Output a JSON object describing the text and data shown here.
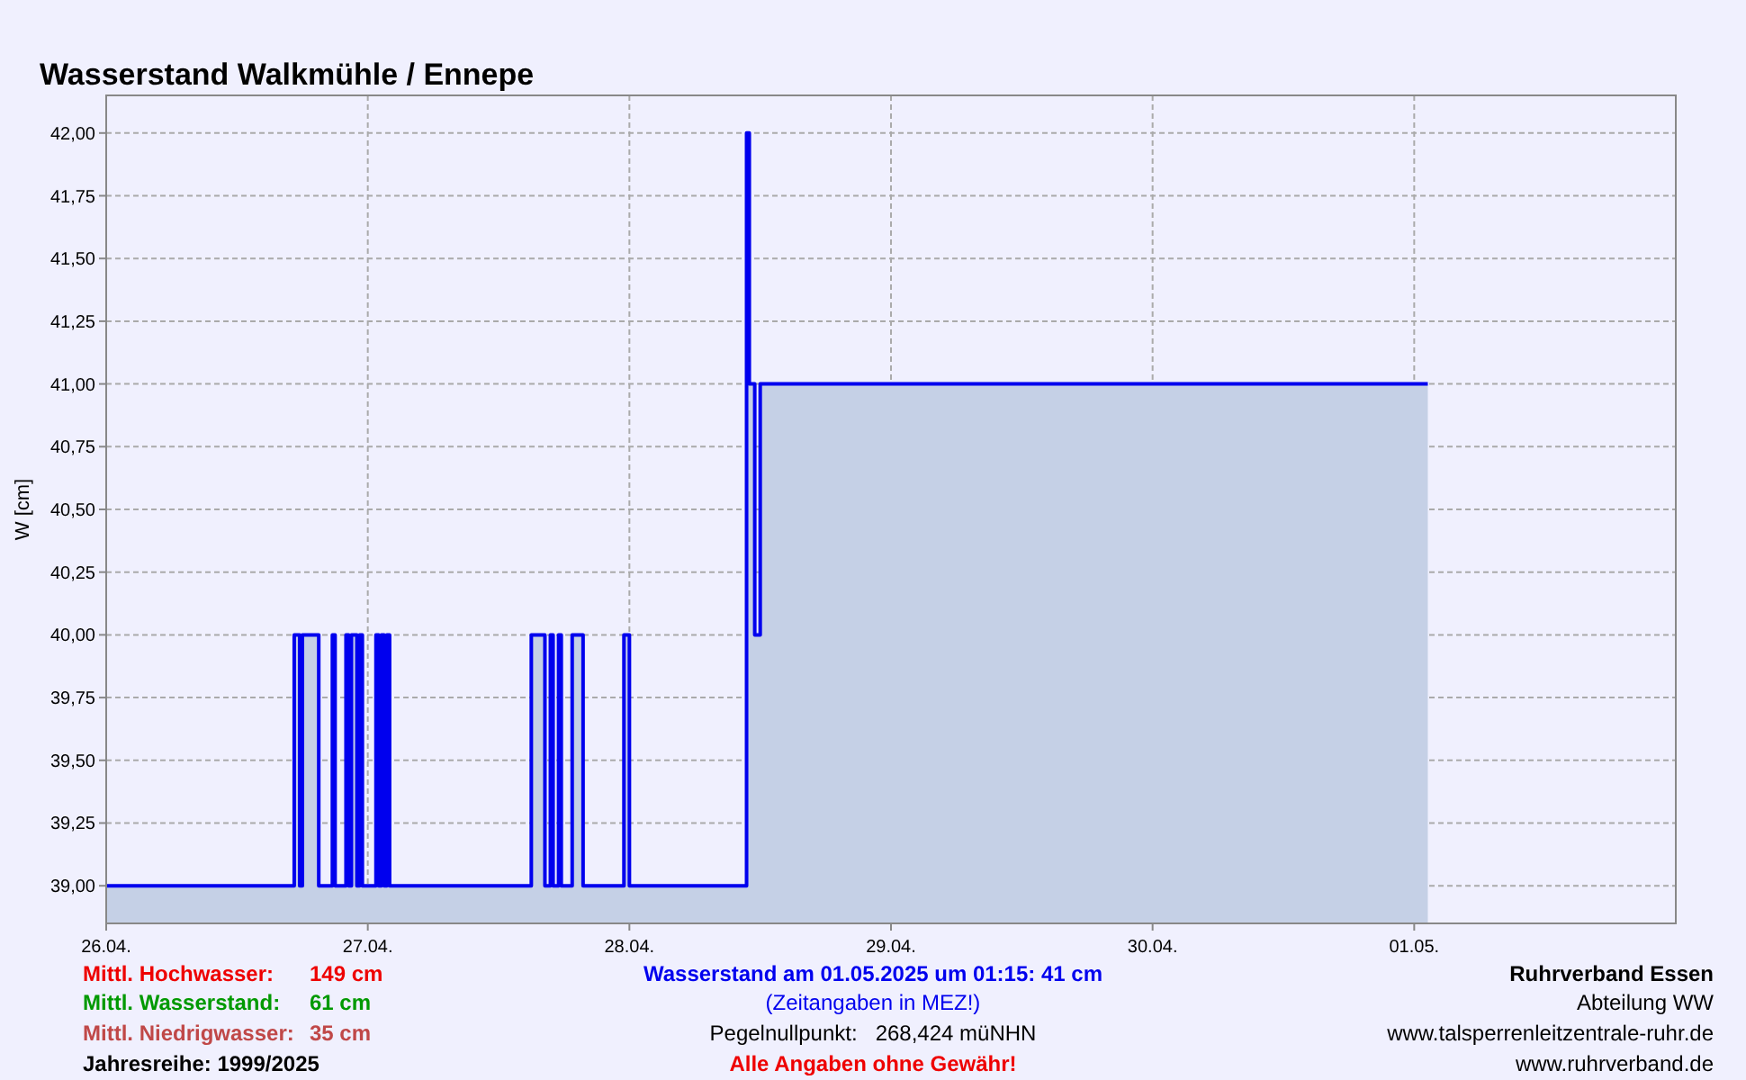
{
  "chart_data": {
    "type": "step",
    "title": "Wasserstand Walkmühle / Ennepe",
    "ylabel": "W [cm]",
    "x": [
      "2025-04-26T00:00",
      "2025-04-26T17:15",
      "2025-04-26T17:45",
      "2025-04-26T18:00",
      "2025-04-26T19:30",
      "2025-04-26T20:45",
      "2025-04-26T21:00",
      "2025-04-26T22:00",
      "2025-04-26T22:15",
      "2025-04-26T22:30",
      "2025-04-26T23:00",
      "2025-04-26T23:15",
      "2025-04-26T23:30",
      "2025-04-27T00:45",
      "2025-04-27T01:00",
      "2025-04-27T01:15",
      "2025-04-27T01:30",
      "2025-04-27T01:45",
      "2025-04-27T02:00",
      "2025-04-27T15:00",
      "2025-04-27T16:15",
      "2025-04-27T16:45",
      "2025-04-27T17:00",
      "2025-04-27T17:30",
      "2025-04-27T17:45",
      "2025-04-27T18:45",
      "2025-04-27T19:45",
      "2025-04-27T23:30",
      "2025-04-28T00:00",
      "2025-04-28T10:45",
      "2025-04-28T11:00",
      "2025-04-28T11:30",
      "2025-04-28T12:00",
      "2025-05-01T01:15"
    ],
    "series": [
      {
        "type": "area",
        "color": "#c5d0e6",
        "values": [
          39,
          40,
          39,
          40,
          39,
          40,
          39,
          40,
          39,
          40,
          39,
          40,
          39,
          40,
          39,
          40,
          39,
          40,
          39,
          40,
          39,
          40,
          39,
          40,
          39,
          40,
          39,
          40,
          39,
          42,
          41,
          40,
          41,
          41
        ]
      },
      {
        "color": "#0000ee",
        "values": [
          39,
          40,
          39,
          40,
          39,
          40,
          39,
          40,
          39,
          40,
          39,
          40,
          39,
          40,
          39,
          40,
          39,
          40,
          39,
          40,
          39,
          40,
          39,
          40,
          39,
          40,
          39,
          40,
          39,
          42,
          41,
          40,
          41,
          41
        ]
      }
    ],
    "xlim": [
      "2025-04-26T00:00",
      "2025-05-02T00:00"
    ],
    "xticks": [
      {
        "value": "2025-04-26",
        "label": "26.04."
      },
      {
        "value": "2025-04-27",
        "label": "27.04."
      },
      {
        "value": "2025-04-28",
        "label": "28.04."
      },
      {
        "value": "2025-04-29",
        "label": "29.04."
      },
      {
        "value": "2025-04-30",
        "label": "30.04."
      },
      {
        "value": "2025-05-01",
        "label": "01.05."
      }
    ],
    "ylim": [
      38.85,
      42.15
    ],
    "yticks": [
      {
        "value": 39,
        "label": "39,00"
      },
      {
        "value": 39.25,
        "label": "39,25"
      },
      {
        "value": 39.5,
        "label": "39,50"
      },
      {
        "value": 39.75,
        "label": "39,75"
      },
      {
        "value": 40,
        "label": "40,00"
      },
      {
        "value": 40.25,
        "label": "40,25"
      },
      {
        "value": 40.5,
        "label": "40,50"
      },
      {
        "value": 40.75,
        "label": "40,75"
      },
      {
        "value": 41,
        "label": "41,00"
      },
      {
        "value": 41.25,
        "label": "41,25"
      },
      {
        "value": 41.5,
        "label": "41,50"
      },
      {
        "value": 41.75,
        "label": "41,75"
      },
      {
        "value": 42,
        "label": "42,00"
      }
    ],
    "grid": true,
    "annotations": [
      "Mittl. Hochwasser:",
      "149 cm",
      "Mittl. Wasserstand:",
      "61 cm",
      "Mittl. Niedrigwasser:",
      "35 cm",
      "Jahresreihe: 1999/2025",
      "Wasserstand am 01.05.2025 um 01:15: 41 cm",
      "(Zeitangaben in MEZ!)",
      "Pegelnullpunkt:   268,424 müNHN",
      "Alle Angaben ohne Gewähr!",
      "Ruhrverband Essen",
      "Abteilung WW",
      "www.talsperrenleitzentrale-ruhr.de",
      "www.ruhrverband.de"
    ]
  }
}
